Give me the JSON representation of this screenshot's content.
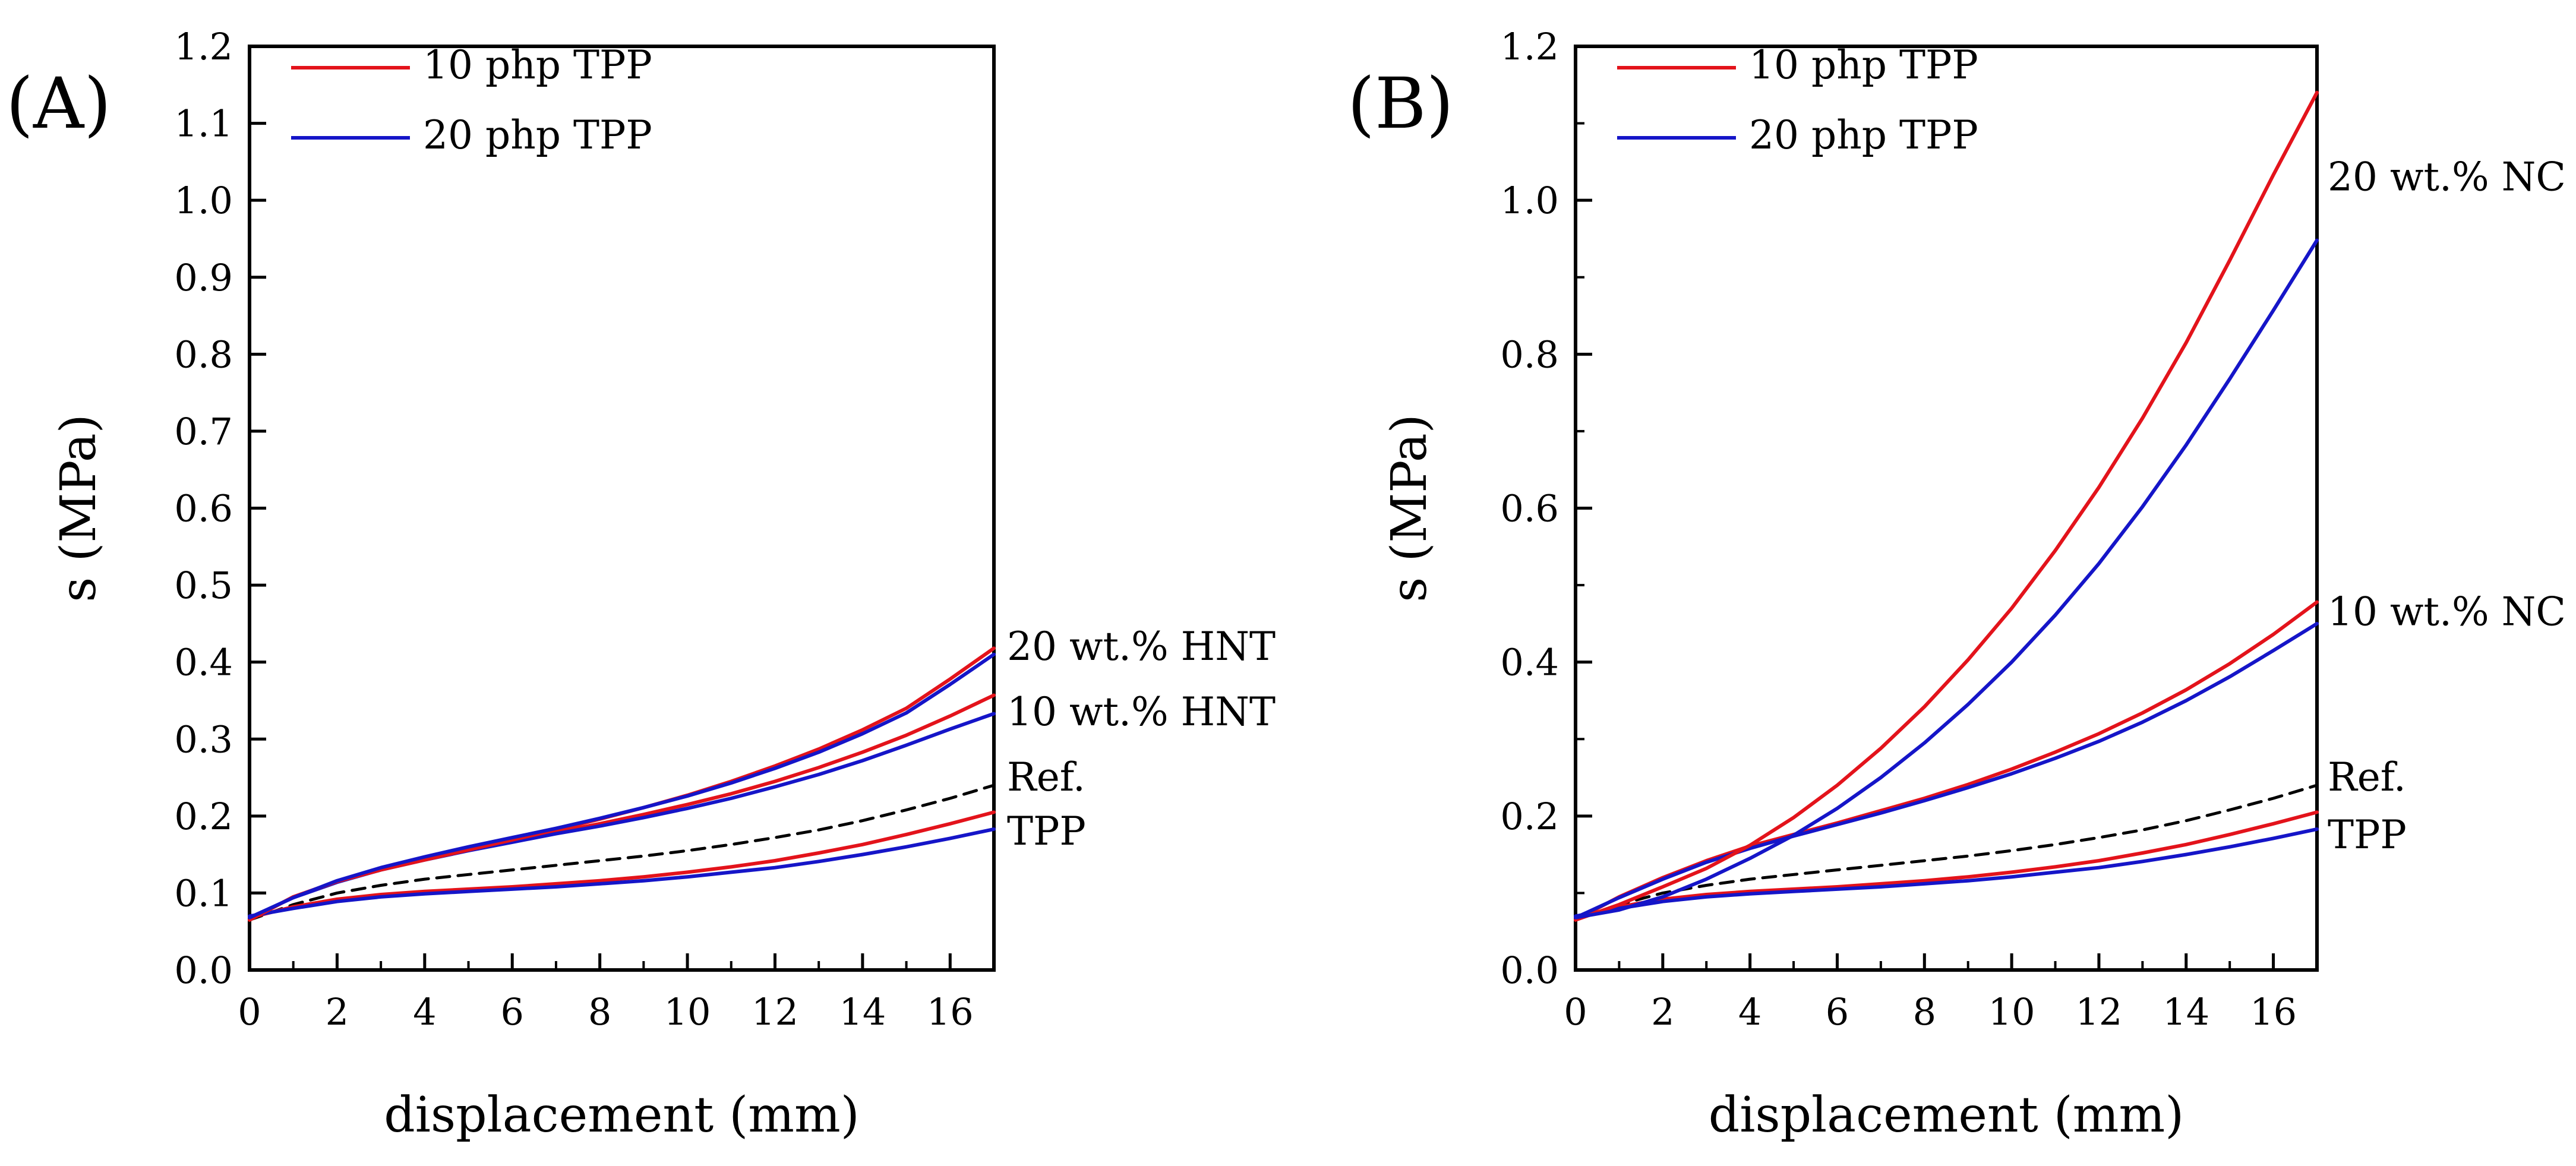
{
  "chart_data": [
    {
      "id": "A",
      "type": "line",
      "panel_label": "(A)",
      "xlabel": "displacement (mm)",
      "ylabel": "s (MPa)",
      "xlim": [
        0,
        17
      ],
      "ylim": [
        0.0,
        1.2
      ],
      "xticks": [
        "0",
        "2",
        "4",
        "6",
        "8",
        "10",
        "12",
        "14",
        "16"
      ],
      "yticks": [
        "0.0",
        "0.1",
        "0.2",
        "0.3",
        "0.4",
        "0.5",
        "0.6",
        "0.7",
        "0.8",
        "0.9",
        "1.0",
        "1.1",
        "1.2"
      ],
      "legend": [
        {
          "label": "10 php TPP",
          "color": "#e3131b"
        },
        {
          "label": "20 php TPP",
          "color": "#1515c8"
        }
      ],
      "annotations": [
        {
          "text": "20 wt.% HNT",
          "x": 17,
          "y": 0.42
        },
        {
          "text": "10 wt.% HNT",
          "x": 17,
          "y": 0.335
        },
        {
          "text": "Ref.",
          "x": 17,
          "y": 0.25
        },
        {
          "text": "TPP",
          "x": 17,
          "y": 0.18
        }
      ],
      "x": [
        0,
        1,
        2,
        3,
        4,
        5,
        6,
        7,
        8,
        9,
        10,
        11,
        12,
        13,
        14,
        15,
        16,
        17
      ],
      "series": [
        {
          "name": "Ref.",
          "color": "#000000",
          "dash": true,
          "values": [
            0.065,
            0.085,
            0.1,
            0.11,
            0.118,
            0.124,
            0.13,
            0.136,
            0.142,
            0.148,
            0.155,
            0.163,
            0.172,
            0.182,
            0.194,
            0.208,
            0.223,
            0.24
          ]
        },
        {
          "name": "TPP 10 php",
          "color": "#e3131b",
          "values": [
            0.068,
            0.082,
            0.092,
            0.098,
            0.102,
            0.105,
            0.108,
            0.112,
            0.116,
            0.121,
            0.127,
            0.134,
            0.142,
            0.152,
            0.163,
            0.176,
            0.19,
            0.205
          ]
        },
        {
          "name": "TPP 20 php",
          "color": "#1515c8",
          "values": [
            0.07,
            0.08,
            0.089,
            0.095,
            0.099,
            0.102,
            0.105,
            0.108,
            0.112,
            0.116,
            0.121,
            0.127,
            0.133,
            0.141,
            0.15,
            0.16,
            0.171,
            0.183
          ]
        },
        {
          "name": "10 wt.% HNT / 10 php TPP",
          "color": "#e3131b",
          "values": [
            0.065,
            0.095,
            0.115,
            0.132,
            0.145,
            0.157,
            0.168,
            0.179,
            0.19,
            0.202,
            0.215,
            0.229,
            0.245,
            0.263,
            0.283,
            0.305,
            0.33,
            0.357
          ]
        },
        {
          "name": "10 wt.% HNT / 20 php TPP",
          "color": "#1515c8",
          "values": [
            0.068,
            0.094,
            0.114,
            0.13,
            0.143,
            0.155,
            0.166,
            0.177,
            0.187,
            0.198,
            0.21,
            0.223,
            0.238,
            0.254,
            0.272,
            0.292,
            0.313,
            0.333
          ]
        },
        {
          "name": "20 wt.% HNT / 10 php TPP",
          "color": "#e3131b",
          "values": [
            0.065,
            0.095,
            0.115,
            0.13,
            0.143,
            0.156,
            0.169,
            0.182,
            0.196,
            0.211,
            0.227,
            0.245,
            0.265,
            0.287,
            0.312,
            0.34,
            0.378,
            0.418
          ]
        },
        {
          "name": "20 wt.% HNT / 20 php TPP",
          "color": "#1515c8",
          "values": [
            0.068,
            0.094,
            0.116,
            0.133,
            0.147,
            0.16,
            0.172,
            0.184,
            0.197,
            0.211,
            0.226,
            0.243,
            0.262,
            0.283,
            0.307,
            0.334,
            0.371,
            0.41
          ]
        }
      ]
    },
    {
      "id": "B",
      "type": "line",
      "panel_label": "(B)",
      "xlabel": "displacement (mm)",
      "ylabel": "s (MPa)",
      "xlim": [
        0,
        17
      ],
      "ylim": [
        0.0,
        1.2
      ],
      "xticks": [
        "0",
        "2",
        "4",
        "6",
        "8",
        "10",
        "12",
        "14",
        "16"
      ],
      "yticks": [
        "0.0",
        "0.2",
        "0.4",
        "0.6",
        "0.8",
        "1.0",
        "1.2"
      ],
      "legend": [
        {
          "label": "10 php TPP",
          "color": "#e3131b"
        },
        {
          "label": "20 php TPP",
          "color": "#1515c8"
        }
      ],
      "annotations": [
        {
          "text": "20 wt.% NC",
          "x": 17,
          "y": 1.03
        },
        {
          "text": "10 wt.% NC",
          "x": 17,
          "y": 0.465
        },
        {
          "text": "Ref.",
          "x": 17,
          "y": 0.25
        },
        {
          "text": "TPP",
          "x": 17,
          "y": 0.175
        }
      ],
      "x": [
        0,
        1,
        2,
        3,
        4,
        5,
        6,
        7,
        8,
        9,
        10,
        11,
        12,
        13,
        14,
        15,
        16,
        17
      ],
      "series": [
        {
          "name": "Ref.",
          "color": "#000000",
          "dash": true,
          "values": [
            0.065,
            0.085,
            0.1,
            0.11,
            0.118,
            0.124,
            0.13,
            0.136,
            0.142,
            0.148,
            0.155,
            0.163,
            0.172,
            0.182,
            0.194,
            0.208,
            0.223,
            0.24
          ]
        },
        {
          "name": "TPP 10 php",
          "color": "#e3131b",
          "values": [
            0.068,
            0.082,
            0.092,
            0.098,
            0.102,
            0.105,
            0.108,
            0.112,
            0.116,
            0.121,
            0.127,
            0.134,
            0.142,
            0.152,
            0.163,
            0.176,
            0.19,
            0.205
          ]
        },
        {
          "name": "TPP 20 php",
          "color": "#1515c8",
          "values": [
            0.07,
            0.08,
            0.089,
            0.095,
            0.099,
            0.102,
            0.105,
            0.108,
            0.112,
            0.116,
            0.121,
            0.127,
            0.133,
            0.141,
            0.15,
            0.16,
            0.171,
            0.183
          ]
        },
        {
          "name": "10 wt.% NC / 10 php TPP",
          "color": "#e3131b",
          "values": [
            0.065,
            0.095,
            0.12,
            0.142,
            0.161,
            0.176,
            0.191,
            0.207,
            0.223,
            0.241,
            0.261,
            0.283,
            0.307,
            0.334,
            0.364,
            0.398,
            0.436,
            0.478
          ]
        },
        {
          "name": "10 wt.% NC / 20 php TPP",
          "color": "#1515c8",
          "values": [
            0.068,
            0.094,
            0.118,
            0.14,
            0.158,
            0.174,
            0.189,
            0.204,
            0.22,
            0.237,
            0.255,
            0.275,
            0.297,
            0.322,
            0.35,
            0.381,
            0.415,
            0.45
          ]
        },
        {
          "name": "20 wt.% NC / 10 php TPP",
          "color": "#e3131b",
          "values": [
            0.065,
            0.085,
            0.108,
            0.132,
            0.162,
            0.198,
            0.24,
            0.288,
            0.342,
            0.403,
            0.47,
            0.545,
            0.627,
            0.717,
            0.815,
            0.922,
            1.033,
            1.14
          ]
        },
        {
          "name": "20 wt.% NC / 20 php TPP",
          "color": "#1515c8",
          "values": [
            0.068,
            0.078,
            0.095,
            0.118,
            0.145,
            0.175,
            0.21,
            0.25,
            0.295,
            0.345,
            0.4,
            0.461,
            0.528,
            0.602,
            0.682,
            0.768,
            0.857,
            0.948
          ]
        }
      ]
    }
  ]
}
